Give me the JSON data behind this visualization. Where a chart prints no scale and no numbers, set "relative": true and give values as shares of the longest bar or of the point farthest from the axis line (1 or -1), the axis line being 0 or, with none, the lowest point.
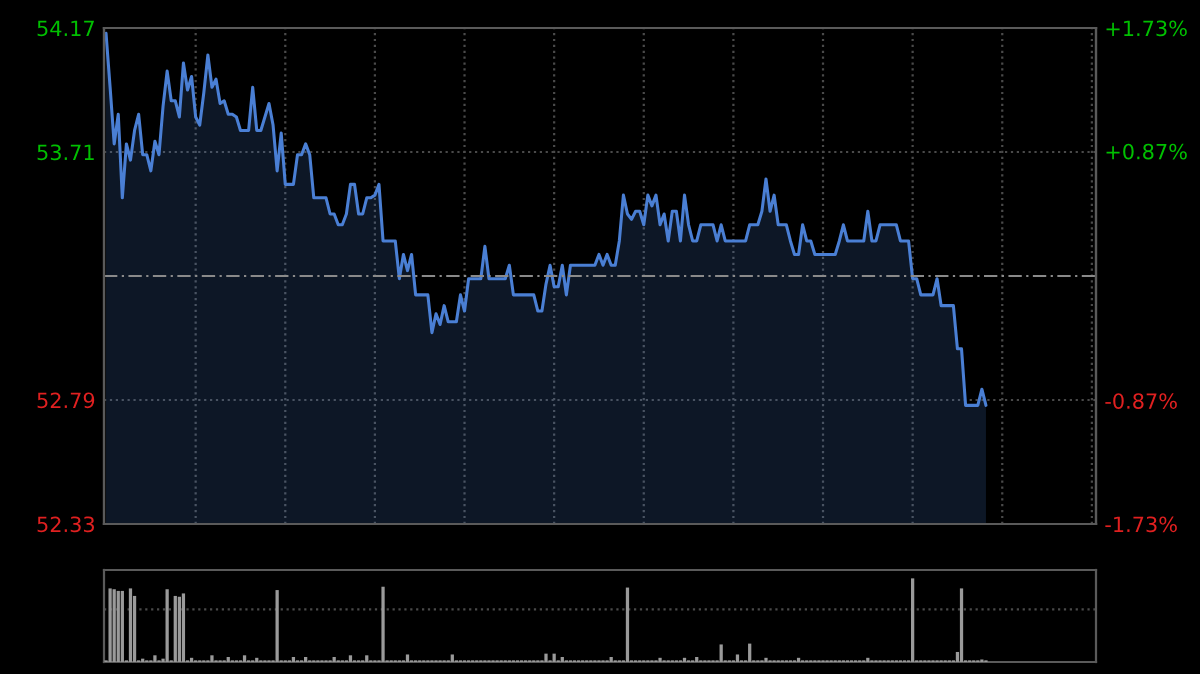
{
  "chart_data": [
    {
      "type": "area",
      "categories": [
        null,
        null,
        null,
        null,
        null,
        null,
        null,
        null,
        null,
        null,
        null,
        null,
        null,
        null,
        null,
        null,
        null,
        null,
        null,
        null,
        null,
        null,
        null,
        null,
        null,
        null,
        null,
        null,
        null,
        null,
        null,
        null,
        null,
        null,
        null,
        null,
        null,
        null,
        null,
        null,
        null,
        null,
        null,
        null,
        null,
        null,
        null,
        null,
        null,
        null,
        null,
        null,
        null,
        null,
        null,
        null,
        null,
        null,
        null,
        null,
        null,
        null,
        null,
        null,
        null,
        null,
        null,
        null,
        null,
        null,
        null,
        null,
        null,
        null,
        null,
        null,
        null,
        null,
        null,
        null,
        null,
        null,
        null,
        null,
        null,
        null,
        null,
        null,
        null,
        null,
        null,
        null,
        null,
        null,
        null,
        null,
        null,
        null,
        null,
        null,
        null,
        null,
        null,
        null,
        null,
        null,
        null,
        null,
        null,
        null,
        null,
        null,
        null,
        null,
        null,
        null,
        null,
        null,
        null,
        null,
        null,
        null,
        null,
        null,
        null,
        null,
        null,
        null,
        null,
        null,
        null,
        null,
        null,
        null,
        null,
        null,
        null,
        null,
        null,
        null,
        null,
        null,
        null,
        null,
        null,
        null,
        null,
        null,
        null,
        null,
        null,
        null,
        null,
        null,
        null,
        null,
        null,
        null,
        null,
        null,
        null,
        null,
        null,
        null,
        null,
        null,
        null,
        null,
        null,
        null,
        null,
        null,
        null,
        null,
        null,
        null,
        null,
        null,
        null,
        null,
        null,
        null,
        null,
        null,
        null,
        null,
        null,
        null,
        null,
        null,
        null,
        null,
        null,
        null,
        null,
        null,
        null,
        null,
        null,
        null,
        null,
        null,
        null,
        null,
        null,
        null,
        null,
        null,
        null,
        null,
        null,
        null,
        null,
        null,
        null,
        null,
        null
      ],
      "ylim": [
        52.33,
        54.17
      ],
      "yticks": [
        52.33,
        52.79,
        53.71,
        54.17
      ],
      "y2lim": [
        -1.73,
        1.73
      ],
      "y2ticks": [
        {
          "value": -1.73,
          "label": "-1.73%"
        },
        {
          "value": -0.87,
          "label": "-0.87%"
        },
        {
          "value": 0.87,
          "label": "+0.87%"
        },
        {
          "value": 1.73,
          "label": "+1.73%"
        }
      ],
      "grid": true,
      "ref_lines": [
        {
          "axis": "y",
          "value": 53.25,
          "label": null,
          "color": "#8a8a8a",
          "line_style": "dashed"
        }
      ],
      "series": [
        {
          "color": "#4a7fd4",
          "values": [
            54.15,
            53.95,
            53.74,
            53.85,
            53.54,
            53.74,
            53.68,
            53.79,
            53.85,
            53.7,
            53.7,
            53.64,
            53.75,
            53.7,
            53.88,
            54.01,
            53.9,
            53.9,
            53.84,
            54.04,
            53.94,
            53.99,
            53.84,
            53.81,
            53.93,
            54.07,
            53.95,
            53.98,
            53.89,
            53.9,
            53.85,
            53.85,
            53.84,
            53.79,
            53.79,
            53.79,
            53.95,
            53.79,
            53.79,
            53.84,
            53.89,
            53.81,
            53.64,
            53.78,
            53.59,
            53.59,
            53.59,
            53.7,
            53.7,
            53.74,
            53.7,
            53.54,
            53.54,
            53.54,
            53.54,
            53.48,
            53.48,
            53.44,
            53.44,
            53.48,
            53.59,
            53.59,
            53.48,
            53.48,
            53.54,
            53.54,
            53.55,
            53.59,
            53.38,
            53.38,
            53.38,
            53.38,
            53.24,
            53.33,
            53.27,
            53.33,
            53.18,
            53.18,
            53.18,
            53.18,
            53.04,
            53.11,
            53.07,
            53.14,
            53.08,
            53.08,
            53.08,
            53.18,
            53.12,
            53.24,
            53.24,
            53.24,
            53.24,
            53.36,
            53.24,
            53.24,
            53.24,
            53.24,
            53.24,
            53.29,
            53.18,
            53.18,
            53.18,
            53.18,
            53.18,
            53.18,
            53.12,
            53.12,
            53.22,
            53.29,
            53.21,
            53.21,
            53.29,
            53.18,
            53.29,
            53.29,
            53.29,
            53.29,
            53.29,
            53.29,
            53.29,
            53.33,
            53.29,
            53.33,
            53.29,
            53.29,
            53.38,
            53.55,
            53.48,
            53.46,
            53.49,
            53.49,
            53.44,
            53.55,
            53.51,
            53.55,
            53.44,
            53.48,
            53.38,
            53.49,
            53.49,
            53.38,
            53.55,
            53.44,
            53.38,
            53.38,
            53.44,
            53.44,
            53.44,
            53.44,
            53.38,
            53.44,
            53.38,
            53.38,
            53.38,
            53.38,
            53.38,
            53.38,
            53.44,
            53.44,
            53.44,
            53.49,
            53.61,
            53.49,
            53.55,
            53.44,
            53.44,
            53.44,
            53.38,
            53.33,
            53.33,
            53.44,
            53.38,
            53.38,
            53.33,
            53.33,
            53.33,
            53.33,
            53.33,
            53.33,
            53.38,
            53.44,
            53.38,
            53.38,
            53.38,
            53.38,
            53.38,
            53.49,
            53.38,
            53.38,
            53.44,
            53.44,
            53.44,
            53.44,
            53.44,
            53.38,
            53.38,
            53.38,
            53.24,
            53.24,
            53.18,
            53.18,
            53.18,
            53.18,
            53.24,
            53.14,
            53.14,
            53.14,
            53.14,
            52.98,
            52.98,
            52.77,
            52.77,
            52.77,
            52.77,
            52.83,
            52.77
          ]
        }
      ]
    },
    {
      "type": "bar",
      "relative": true,
      "ref_lines": [
        {
          "axis": "y",
          "value": 0.63,
          "label": null,
          "color": "#4a4a4a",
          "line_style": "dotted"
        }
      ],
      "categories": [
        null,
        null,
        null,
        null,
        null,
        null,
        null,
        null,
        null,
        null,
        null,
        null,
        null,
        null,
        null,
        null,
        null,
        null,
        null,
        null,
        null,
        null,
        null,
        null,
        null,
        null,
        null,
        null,
        null,
        null,
        null,
        null,
        null,
        null,
        null,
        null,
        null,
        null,
        null,
        null,
        null,
        null,
        null,
        null,
        null,
        null,
        null,
        null,
        null,
        null,
        null,
        null,
        null,
        null,
        null,
        null,
        null,
        null,
        null,
        null,
        null,
        null,
        null,
        null,
        null,
        null,
        null,
        null,
        null,
        null,
        null,
        null,
        null,
        null,
        null,
        null,
        null,
        null,
        null,
        null,
        null,
        null,
        null,
        null,
        null,
        null,
        null,
        null,
        null,
        null,
        null,
        null,
        null,
        null,
        null,
        null,
        null,
        null,
        null,
        null,
        null,
        null,
        null,
        null,
        null,
        null,
        null,
        null,
        null,
        null,
        null,
        null,
        null,
        null,
        null,
        null,
        null,
        null,
        null,
        null,
        null,
        null,
        null,
        null,
        null,
        null,
        null,
        null,
        null,
        null,
        null,
        null,
        null,
        null,
        null,
        null,
        null,
        null,
        null,
        null,
        null,
        null,
        null,
        null,
        null,
        null,
        null,
        null,
        null,
        null,
        null,
        null,
        null,
        null,
        null,
        null,
        null,
        null,
        null,
        null,
        null,
        null,
        null,
        null,
        null,
        null,
        null,
        null,
        null,
        null,
        null,
        null,
        null,
        null,
        null,
        null,
        null,
        null,
        null,
        null,
        null,
        null,
        null,
        null,
        null,
        null,
        null,
        null,
        null,
        null,
        null,
        null,
        null,
        null,
        null,
        null,
        null,
        null,
        null,
        null,
        null,
        null,
        null,
        null,
        null,
        null,
        null,
        null,
        null,
        null,
        null,
        null,
        null,
        null,
        null,
        null,
        null
      ],
      "series": [
        {
          "color": "#9a9a9a",
          "values": [
            0.02,
            0.88,
            0.87,
            0.85,
            0.85,
            0.02,
            0.88,
            0.79,
            0.02,
            0.04,
            0.02,
            0.02,
            0.08,
            0.02,
            0.04,
            0.87,
            0.02,
            0.79,
            0.78,
            0.82,
            0.02,
            0.05,
            0.02,
            0.02,
            0.02,
            0.02,
            0.08,
            0.02,
            0.02,
            0.02,
            0.06,
            0.02,
            0.02,
            0.02,
            0.08,
            0.02,
            0.02,
            0.05,
            0.02,
            0.02,
            0.02,
            0.02,
            0.86,
            0.02,
            0.02,
            0.02,
            0.06,
            0.02,
            0.02,
            0.06,
            0.02,
            0.02,
            0.02,
            0.02,
            0.02,
            0.02,
            0.06,
            0.02,
            0.02,
            0.02,
            0.08,
            0.02,
            0.02,
            0.02,
            0.08,
            0.02,
            0.02,
            0.02,
            0.9,
            0.02,
            0.02,
            0.02,
            0.02,
            0.02,
            0.09,
            0.02,
            0.02,
            0.02,
            0.02,
            0.02,
            0.02,
            0.02,
            0.02,
            0.02,
            0.02,
            0.09,
            0.02,
            0.02,
            0.02,
            0.02,
            0.02,
            0.02,
            0.02,
            0.02,
            0.02,
            0.02,
            0.02,
            0.02,
            0.02,
            0.02,
            0.02,
            0.02,
            0.02,
            0.02,
            0.02,
            0.02,
            0.02,
            0.02,
            0.1,
            0.02,
            0.1,
            0.02,
            0.06,
            0.02,
            0.02,
            0.02,
            0.02,
            0.02,
            0.02,
            0.02,
            0.02,
            0.02,
            0.02,
            0.02,
            0.06,
            0.02,
            0.02,
            0.02,
            0.89,
            0.02,
            0.02,
            0.02,
            0.02,
            0.02,
            0.02,
            0.02,
            0.05,
            0.02,
            0.02,
            0.02,
            0.02,
            0.02,
            0.05,
            0.02,
            0.02,
            0.06,
            0.02,
            0.02,
            0.02,
            0.02,
            0.02,
            0.21,
            0.02,
            0.02,
            0.02,
            0.09,
            0.02,
            0.02,
            0.22,
            0.02,
            0.02,
            0.02,
            0.05,
            0.02,
            0.02,
            0.02,
            0.02,
            0.02,
            0.02,
            0.02,
            0.05,
            0.02,
            0.02,
            0.02,
            0.02,
            0.02,
            0.02,
            0.02,
            0.02,
            0.02,
            0.02,
            0.02,
            0.02,
            0.02,
            0.02,
            0.02,
            0.02,
            0.05,
            0.02,
            0.02,
            0.02,
            0.02,
            0.02,
            0.02,
            0.02,
            0.02,
            0.02,
            0.02,
            1.0,
            0.02,
            0.02,
            0.02,
            0.02,
            0.02,
            0.02,
            0.02,
            0.02,
            0.02,
            0.02,
            0.12,
            0.88,
            0.02,
            0.02,
            0.02,
            0.02,
            0.03,
            0.02
          ]
        }
      ]
    }
  ]
}
